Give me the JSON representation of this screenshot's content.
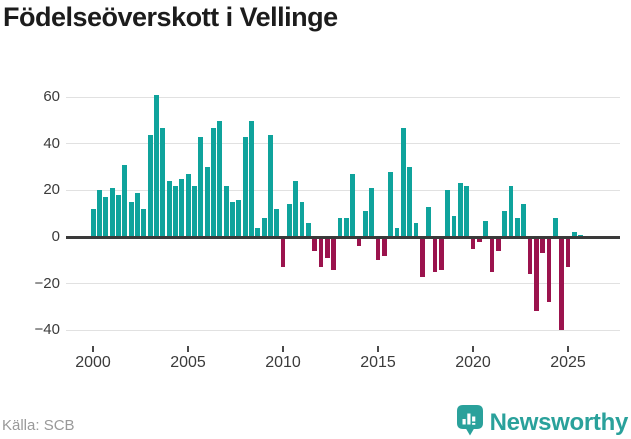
{
  "header": {
    "title": "Födelseöverskott i Vellinge"
  },
  "footer": {
    "source": "Källa: SCB",
    "brand": "Newsworthy"
  },
  "colors": {
    "positive": "#0fa39c",
    "negative": "#9b134d",
    "brand_teal": "#2aa19b",
    "grid": "#e1e1e1",
    "zero_line": "#3a3a3a",
    "axis_text": "#3b3b3b",
    "muted_text": "#999999"
  },
  "chart_data": {
    "type": "bar",
    "title": "Födelseöverskott i Vellinge",
    "xlabel": "",
    "ylabel": "",
    "grid": true,
    "legend": "none",
    "ylim": [
      -44,
      64
    ],
    "yticks": [
      60,
      40,
      20,
      0,
      -20,
      -40
    ],
    "ytick_labels": [
      "60",
      "40",
      "20",
      "0",
      "−20",
      "−40"
    ],
    "xticks": [
      2000,
      2005,
      2010,
      2015,
      2020,
      2025
    ],
    "xtick_labels": [
      "2000",
      "2005",
      "2010",
      "2015",
      "2020",
      "2025"
    ],
    "periods_per_year": 3,
    "periods": [
      "2000-T1",
      "2000-T2",
      "2000-T3",
      "2001-T1",
      "2001-T2",
      "2001-T3",
      "2002-T1",
      "2002-T2",
      "2002-T3",
      "2003-T1",
      "2003-T2",
      "2003-T3",
      "2004-T1",
      "2004-T2",
      "2004-T3",
      "2005-T1",
      "2005-T2",
      "2005-T3",
      "2006-T1",
      "2006-T2",
      "2006-T3",
      "2007-T1",
      "2007-T2",
      "2007-T3",
      "2008-T1",
      "2008-T2",
      "2008-T3",
      "2009-T1",
      "2009-T2",
      "2009-T3",
      "2010-T1",
      "2010-T2",
      "2010-T3",
      "2011-T1",
      "2011-T2",
      "2011-T3",
      "2012-T1",
      "2012-T2",
      "2012-T3",
      "2013-T1",
      "2013-T2",
      "2013-T3",
      "2014-T1",
      "2014-T2",
      "2014-T3",
      "2015-T1",
      "2015-T2",
      "2015-T3",
      "2016-T1",
      "2016-T2",
      "2016-T3",
      "2017-T1",
      "2017-T2",
      "2017-T3",
      "2018-T1",
      "2018-T2",
      "2018-T3",
      "2019-T1",
      "2019-T2",
      "2019-T3",
      "2020-T1",
      "2020-T2",
      "2020-T3",
      "2021-T1",
      "2021-T2",
      "2021-T3",
      "2022-T1",
      "2022-T2",
      "2022-T3",
      "2023-T1",
      "2023-T2",
      "2023-T3",
      "2024-T1",
      "2024-T2",
      "2024-T3",
      "2025-T1",
      "2025-T2",
      "2025-T3"
    ],
    "values": [
      12,
      20,
      17,
      21,
      18,
      31,
      15,
      19,
      12,
      44,
      61,
      47,
      24,
      22,
      25,
      27,
      22,
      43,
      30,
      47,
      50,
      22,
      15,
      16,
      43,
      50,
      4,
      8,
      44,
      12,
      -13,
      14,
      24,
      15,
      6,
      -6,
      -13,
      -9,
      -14,
      8,
      8,
      27,
      -4,
      11,
      21,
      -10,
      -8,
      28,
      4,
      47,
      30,
      6,
      -17,
      13,
      -15,
      -14,
      20,
      9,
      23,
      22,
      -5,
      -2,
      7,
      -15,
      -6,
      11,
      22,
      8,
      14,
      -16,
      -32,
      -7,
      -28,
      8,
      -40,
      -13,
      2,
      1
    ]
  }
}
